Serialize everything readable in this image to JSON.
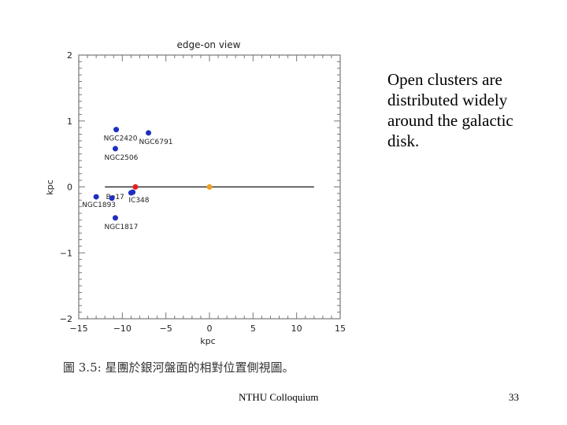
{
  "slide": {
    "text": "Open clusters are distributed widely around the galactic disk.",
    "footer": "NTHU Colloquium",
    "page_number": "33",
    "caption": "圖 3.5: 星團於銀河盤面的相對位置側視圖。"
  },
  "chart_data": {
    "type": "scatter",
    "title": "edge-on view",
    "xlabel": "kpc",
    "ylabel": "kpc",
    "xlim": [
      -15,
      15
    ],
    "ylim": [
      -2,
      2
    ],
    "xticks": [
      -15,
      -10,
      -5,
      0,
      5,
      10,
      15
    ],
    "yticks": [
      -2,
      -1,
      0,
      1,
      2
    ],
    "tick_labels_x": [
      "−15",
      "−10",
      "−5",
      "0",
      "5",
      "10",
      "15"
    ],
    "tick_labels_y": [
      "−2",
      "−1",
      "0",
      "1",
      "2"
    ],
    "grid": false,
    "disk_line": {
      "x": [
        -12,
        12
      ],
      "y": 0
    },
    "points": [
      {
        "label": "NGC2420",
        "x": -10.7,
        "y": 0.87,
        "color": "#1f2fbf"
      },
      {
        "label": "NGC6791",
        "x": -7.0,
        "y": 0.82,
        "color": "#1f2fbf"
      },
      {
        "label": "NGC2506",
        "x": -10.8,
        "y": 0.58,
        "color": "#1f2fbf"
      },
      {
        "label": "Be17",
        "x": -8.8,
        "y": -0.08,
        "color": "#1f2fbf"
      },
      {
        "label": "NGC1893",
        "x": -13.0,
        "y": -0.15,
        "color": "#1f2fbf"
      },
      {
        "label": "",
        "x": -11.2,
        "y": -0.17,
        "color": "#1f2fbf"
      },
      {
        "label": "IC348",
        "x": -9.0,
        "y": -0.09,
        "color": "#1f2fbf"
      },
      {
        "label": "NGC1817",
        "x": -10.8,
        "y": -0.47,
        "color": "#1f2fbf"
      },
      {
        "label": "",
        "x": -8.5,
        "y": 0.0,
        "color": "#e32020"
      },
      {
        "label": "",
        "x": 0.0,
        "y": 0.0,
        "color": "#f0a020"
      }
    ]
  }
}
